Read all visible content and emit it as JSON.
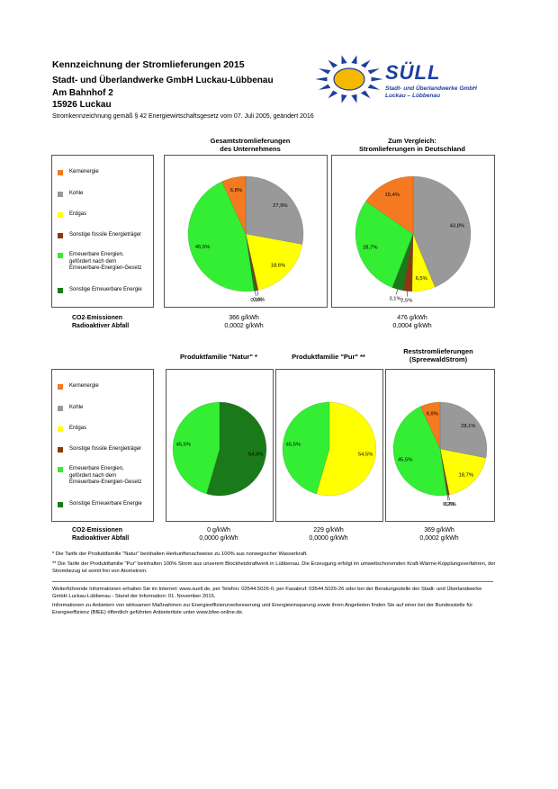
{
  "header": {
    "title": "Kennzeichnung der Stromlieferungen 2015",
    "company": "Stadt- und Überlandwerke GmbH Luckau-Lübbenau",
    "street": "Am Bahnhof 2",
    "city": "15926 Luckau",
    "legal": "Stromkennzeichnung gemäß § 42 Energiewirtschaftsgesetz vom 07. Juli 2005, geändert 2016"
  },
  "logo": {
    "word": "SÜLL",
    "line1": "Stadt- und Überlandwerke GmbH",
    "line2": "Luckau – Lübbenau",
    "sun_color": "#1d3fa0",
    "disc_color": "#f4b800"
  },
  "legend_items": [
    {
      "label": "Kernenergie",
      "color": "#f47920"
    },
    {
      "label": "Kohle",
      "color": "#999999"
    },
    {
      "label": "Erdgas",
      "color": "#ffff00"
    },
    {
      "label": "Sonstige fossile Energieträger",
      "color": "#8b3a0e"
    },
    {
      "label": "Erneuerbare Energien,\ngefördert nach dem\nErneuerbare-Energien-Gesetz",
      "color": "#33ee33"
    },
    {
      "label": "Sonstige Erneuerbare Energie",
      "color": "#1a7a1a"
    }
  ],
  "section1": {
    "titles": [
      "Gesamtstromlieferungen\ndes Unternehmens",
      "Zum Vergleich:\nStromlieferungen in Deutschland"
    ],
    "emission_labels": [
      "CO2-Emissionen",
      "Radioaktiver Abfall"
    ],
    "emissions": [
      {
        "co2": "366 g/kWh",
        "waste": "0,0002 g/kWh"
      },
      {
        "co2": "476 g/kWh",
        "waste": "0,0004 g/kWh"
      }
    ]
  },
  "section2": {
    "titles": [
      "Produktfamilie \"Natur\" *",
      "Produktfamilie \"Pur\" **",
      "Reststromlieferungen\n(SpreewaldStrom)"
    ],
    "emission_labels": [
      "CO2-Emissionen",
      "Radioaktiver Abfall"
    ],
    "emissions": [
      {
        "co2": "0 g/kWh",
        "waste": "0,0000 g/kWh"
      },
      {
        "co2": "229 g/kWh",
        "waste": "0,0000 g/kWh"
      },
      {
        "co2": "369 g/kWh",
        "waste": "0,0002 g/kWh"
      }
    ]
  },
  "notes": [
    "* Die Tarife der Produktfamilie \"Natur\" beinhalten Herkunftsnachweise zu 100% aus norwegischer Wasserkraft.",
    "** Die Tarife der Produktfamilie \"Pur\" beinhalten 100% Strom aus unserem Blockheizkraftwerk in Lübbenau. Die Erzeugung erfolgt im umweltschonenden Kraft-Wärme-Kopplungsverfahren, der Strombezug ist somit frei von Atomstrom."
  ],
  "footer": [
    "Weiterführende Informationen erhalten Sie im Internet: www.suell.de, per Telefon: 03544.5026-0, per Faxabruf: 03544.5026-26 oder bei der Beratungsstelle der Stadt- und Überlandwerke GmbH Luckau-Lübbenau - Stand der Information: 01. November 2015.",
    "Informationen zu Anbietern von wirksamen Maßnahmen zur Energieeffizienzverbesserung und Energieeinsparung sowie ihren Angeboten finden Sie auf einer bei der Bundesstelle für Energieeffizienz (BfEE) öffentlich geführten Anbieterliste unter www.bfee-online.de."
  ],
  "chart_data": [
    {
      "type": "pie",
      "title": "Gesamtstromlieferungen des Unternehmens",
      "categories": [
        "Kernenergie",
        "Kohle",
        "Erdgas",
        "Sonstige fossile Energieträger",
        "Erneuerbare Energien, gefördert nach dem Erneuerbare-Energien-Gesetz",
        "Sonstige Erneuerbare Energie"
      ],
      "values": [
        6.8,
        27.9,
        18.6,
        0.6,
        45.5,
        0.6
      ],
      "labels": [
        "6,8%",
        "27,9%",
        "18,6%",
        "0,6%",
        "45,5%",
        "0,6%"
      ]
    },
    {
      "type": "pie",
      "title": "Zum Vergleich: Stromlieferungen in Deutschland",
      "categories": [
        "Kernenergie",
        "Kohle",
        "Erdgas",
        "Sonstige fossile Energieträger",
        "Erneuerbare Energien, gefördert nach dem Erneuerbare-Energien-Gesetz",
        "Sonstige Erneuerbare Energie"
      ],
      "values": [
        15.4,
        43.8,
        6.5,
        2.5,
        28.7,
        3.1
      ],
      "labels": [
        "15,4%",
        "43,8%",
        "6,5%",
        "2,5%",
        "28,7%",
        "3,1%"
      ]
    },
    {
      "type": "pie",
      "title": "Produktfamilie \"Natur\" *",
      "categories": [
        "Kernenergie",
        "Kohle",
        "Erdgas",
        "Sonstige fossile Energieträger",
        "Erneuerbare Energien, gefördert nach dem Erneuerbare-Energien-Gesetz",
        "Sonstige Erneuerbare Energie"
      ],
      "values": [
        0,
        0,
        0,
        0,
        45.5,
        54.5
      ],
      "labels": [
        "",
        "",
        "",
        "",
        "45,5%",
        "54,5%"
      ]
    },
    {
      "type": "pie",
      "title": "Produktfamilie \"Pur\" **",
      "categories": [
        "Kernenergie",
        "Kohle",
        "Erdgas",
        "Sonstige fossile Energieträger",
        "Erneuerbare Energien, gefördert nach dem Erneuerbare-Energien-Gesetz",
        "Sonstige Erneuerbare Energie"
      ],
      "values": [
        0,
        0,
        54.5,
        0,
        45.5,
        0
      ],
      "labels": [
        "",
        "",
        "54,5%",
        "",
        "45,5%",
        ""
      ]
    },
    {
      "type": "pie",
      "title": "Reststromlieferungen (SpreewaldStrom)",
      "categories": [
        "Kernenergie",
        "Kohle",
        "Erdgas",
        "Sonstige fossile Energieträger",
        "Erneuerbare Energien, gefördert nach dem Erneuerbare-Energien-Gesetz",
        "Sonstige Erneuerbare Energie"
      ],
      "values": [
        6.9,
        28.1,
        18.7,
        0.6,
        45.5,
        0.2
      ],
      "labels": [
        "6,9%",
        "28,1%",
        "18,7%",
        "0,6%",
        "45,5%",
        "0,2%"
      ]
    }
  ]
}
